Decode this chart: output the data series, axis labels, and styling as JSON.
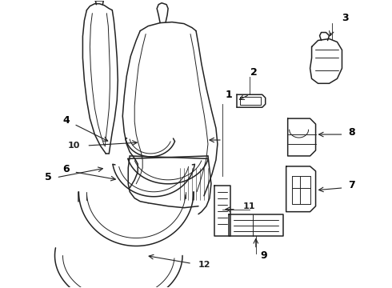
{
  "background_color": "#ffffff",
  "line_color": "#222222",
  "label_color": "#000000",
  "figsize": [
    4.9,
    3.6
  ],
  "dpi": 100
}
